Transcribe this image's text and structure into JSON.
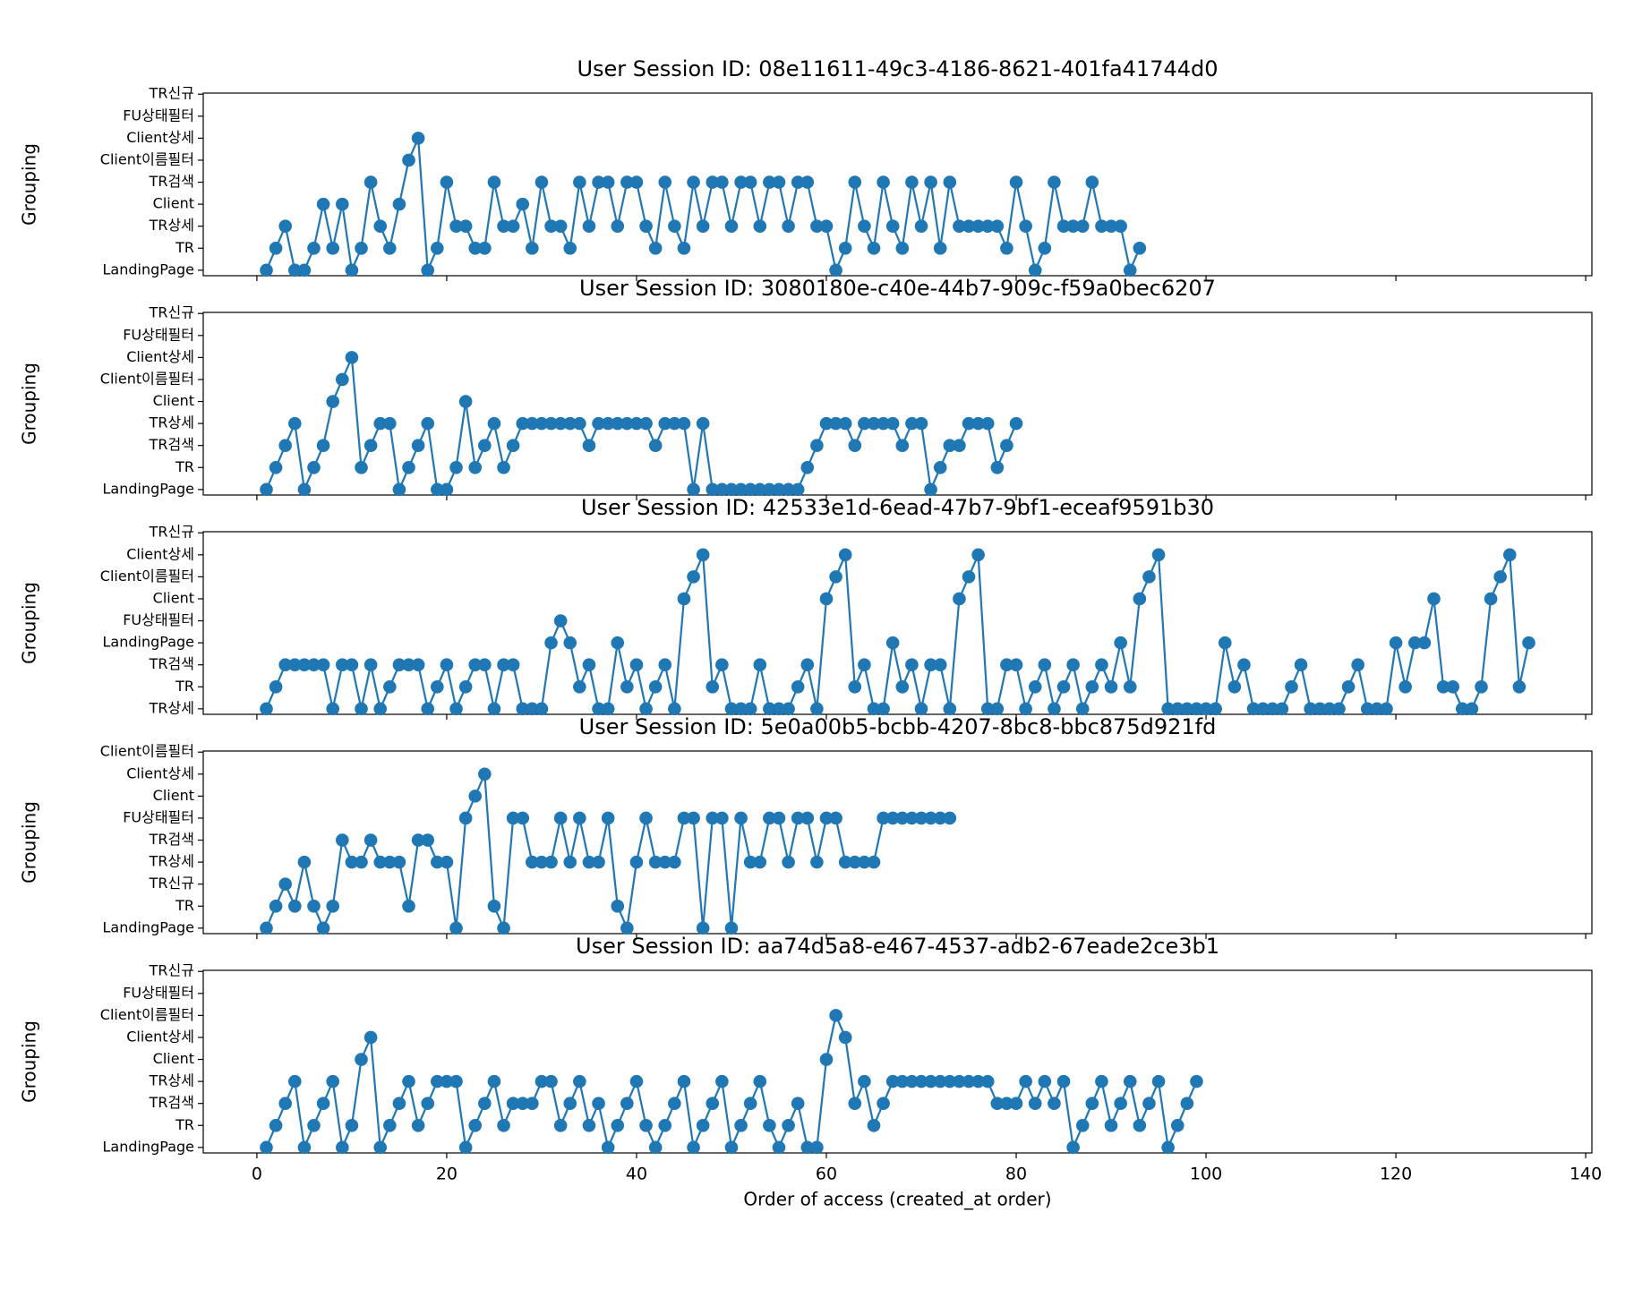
{
  "chart_data": [
    {
      "type": "line",
      "title": "User Session ID: 08e11611-49c3-4186-8621-401fa41744d0",
      "ylabel": "Grouping",
      "ylim": [
        -0.25,
        8.05
      ],
      "yticks": [
        {
          "value": 0,
          "label": "LandingPage"
        },
        {
          "value": 1,
          "label": "TR"
        },
        {
          "value": 2,
          "label": "TR상세"
        },
        {
          "value": 3,
          "label": "Client"
        },
        {
          "value": 4,
          "label": "TR검색"
        },
        {
          "value": 5,
          "label": "Client이름필터"
        },
        {
          "value": 6,
          "label": "Client상세"
        },
        {
          "value": 7,
          "label": "FU상태필터"
        },
        {
          "value": 8,
          "label": "TR신규"
        }
      ],
      "x": [
        1,
        2,
        3,
        4,
        5,
        6,
        7,
        8,
        9,
        10,
        11,
        12,
        13,
        14,
        15,
        16,
        17,
        18,
        19,
        20,
        21,
        22,
        23,
        24,
        25,
        26,
        27,
        28,
        29,
        30,
        31,
        32,
        33,
        34,
        35,
        36,
        37,
        38,
        39,
        40,
        41,
        42,
        43,
        44,
        45,
        46,
        47,
        48,
        49,
        50,
        51,
        52,
        53,
        54,
        55,
        56,
        57,
        58,
        59,
        60,
        61,
        62,
        63,
        64,
        65,
        66,
        67,
        68,
        69,
        70,
        71,
        72,
        73,
        74,
        75,
        76,
        77,
        78,
        79,
        80,
        81,
        82,
        83,
        84,
        85,
        86,
        87,
        88,
        89,
        90,
        91,
        92,
        93
      ],
      "series": [
        {
          "color": "#1f77b4",
          "values": [
            0,
            1,
            2,
            0,
            0,
            1,
            3,
            1,
            3,
            0,
            1,
            4,
            2,
            1,
            3,
            5,
            6,
            0,
            1,
            4,
            2,
            2,
            1,
            1,
            4,
            2,
            2,
            3,
            1,
            4,
            2,
            2,
            1,
            4,
            2,
            4,
            4,
            2,
            4,
            4,
            2,
            1,
            4,
            2,
            1,
            4,
            2,
            4,
            4,
            2,
            4,
            4,
            2,
            4,
            4,
            2,
            4,
            4,
            2,
            2,
            0,
            1,
            4,
            2,
            1,
            4,
            2,
            1,
            4,
            2,
            4,
            1,
            4,
            2,
            2,
            2,
            2,
            2,
            1,
            4,
            2,
            0,
            1,
            4,
            2,
            2,
            2,
            4,
            2,
            2,
            2,
            0,
            1
          ]
        }
      ]
    },
    {
      "type": "line",
      "title": "User Session ID: 3080180e-c40e-44b7-909c-f59a0bec6207",
      "ylabel": "Grouping",
      "ylim": [
        -0.25,
        8.05
      ],
      "yticks": [
        {
          "value": 0,
          "label": "LandingPage"
        },
        {
          "value": 1,
          "label": "TR"
        },
        {
          "value": 2,
          "label": "TR검색"
        },
        {
          "value": 3,
          "label": "TR상세"
        },
        {
          "value": 4,
          "label": "Client"
        },
        {
          "value": 5,
          "label": "Client이름필터"
        },
        {
          "value": 6,
          "label": "Client상세"
        },
        {
          "value": 7,
          "label": "FU상태필터"
        },
        {
          "value": 8,
          "label": "TR신규"
        }
      ],
      "x": [
        1,
        2,
        3,
        4,
        5,
        6,
        7,
        8,
        9,
        10,
        11,
        12,
        13,
        14,
        15,
        16,
        17,
        18,
        19,
        20,
        21,
        22,
        23,
        24,
        25,
        26,
        27,
        28,
        29,
        30,
        31,
        32,
        33,
        34,
        35,
        36,
        37,
        38,
        39,
        40,
        41,
        42,
        43,
        44,
        45,
        46,
        47,
        48,
        49,
        50,
        51,
        52,
        53,
        54,
        55,
        56,
        57,
        58,
        59,
        60,
        61,
        62,
        63,
        64,
        65,
        66,
        67,
        68,
        69,
        70,
        71,
        72,
        73,
        74,
        75,
        76,
        77,
        78,
        79,
        80
      ],
      "series": [
        {
          "color": "#1f77b4",
          "values": [
            0,
            1,
            2,
            3,
            0,
            1,
            2,
            4,
            5,
            6,
            1,
            2,
            3,
            3,
            0,
            1,
            2,
            3,
            0,
            0,
            1,
            4,
            1,
            2,
            3,
            1,
            2,
            3,
            3,
            3,
            3,
            3,
            3,
            3,
            2,
            3,
            3,
            3,
            3,
            3,
            3,
            2,
            3,
            3,
            3,
            0,
            3,
            0,
            0,
            0,
            0,
            0,
            0,
            0,
            0,
            0,
            0,
            1,
            2,
            3,
            3,
            3,
            2,
            3,
            3,
            3,
            3,
            2,
            3,
            3,
            0,
            1,
            2,
            2,
            3,
            3,
            3,
            1,
            2,
            3
          ]
        }
      ]
    },
    {
      "type": "line",
      "title": "User Session ID: 42533e1d-6ead-47b7-9bf1-eceaf9591b30",
      "ylabel": "Grouping",
      "ylim": [
        -0.25,
        8.05
      ],
      "yticks": [
        {
          "value": 0,
          "label": "TR상세"
        },
        {
          "value": 1,
          "label": "TR"
        },
        {
          "value": 2,
          "label": "TR검색"
        },
        {
          "value": 3,
          "label": "LandingPage"
        },
        {
          "value": 4,
          "label": "FU상태필터"
        },
        {
          "value": 5,
          "label": "Client"
        },
        {
          "value": 6,
          "label": "Client이름필터"
        },
        {
          "value": 7,
          "label": "Client상세"
        },
        {
          "value": 8,
          "label": "TR신규"
        }
      ],
      "x": [
        1,
        2,
        3,
        4,
        5,
        6,
        7,
        8,
        9,
        10,
        11,
        12,
        13,
        14,
        15,
        16,
        17,
        18,
        19,
        20,
        21,
        22,
        23,
        24,
        25,
        26,
        27,
        28,
        29,
        30,
        31,
        32,
        33,
        34,
        35,
        36,
        37,
        38,
        39,
        40,
        41,
        42,
        43,
        44,
        45,
        46,
        47,
        48,
        49,
        50,
        51,
        52,
        53,
        54,
        55,
        56,
        57,
        58,
        59,
        60,
        61,
        62,
        63,
        64,
        65,
        66,
        67,
        68,
        69,
        70,
        71,
        72,
        73,
        74,
        75,
        76,
        77,
        78,
        79,
        80,
        81,
        82,
        83,
        84,
        85,
        86,
        87,
        88,
        89,
        90,
        91,
        92,
        93,
        94,
        95,
        96,
        97,
        98,
        99,
        100,
        101,
        102,
        103,
        104,
        105,
        106,
        107,
        108,
        109,
        110,
        111,
        112,
        113,
        114,
        115,
        116,
        117,
        118,
        119,
        120,
        121,
        122,
        123,
        124,
        125,
        126,
        127,
        128,
        129,
        130,
        131,
        132,
        133,
        134
      ],
      "series": [
        {
          "color": "#1f77b4",
          "values": [
            0,
            1,
            2,
            2,
            2,
            2,
            2,
            0,
            2,
            2,
            0,
            2,
            0,
            1,
            2,
            2,
            2,
            0,
            1,
            2,
            0,
            1,
            2,
            2,
            0,
            2,
            2,
            0,
            0,
            0,
            3,
            4,
            3,
            1,
            2,
            0,
            0,
            3,
            1,
            2,
            0,
            1,
            2,
            0,
            5,
            6,
            7,
            1,
            2,
            0,
            0,
            0,
            2,
            0,
            0,
            0,
            1,
            2,
            0,
            5,
            6,
            7,
            1,
            2,
            0,
            0,
            3,
            1,
            2,
            0,
            2,
            2,
            0,
            5,
            6,
            7,
            0,
            0,
            2,
            2,
            0,
            1,
            2,
            0,
            1,
            2,
            0,
            1,
            2,
            1,
            3,
            1,
            5,
            6,
            7,
            0,
            0,
            0,
            0,
            0,
            0,
            3,
            1,
            2,
            0,
            0,
            0,
            0,
            1,
            2,
            0,
            0,
            0,
            0,
            1,
            2,
            0,
            0,
            0,
            3,
            1,
            3,
            3,
            5,
            1,
            1,
            0,
            0,
            1,
            5,
            6,
            7,
            1,
            3
          ]
        }
      ]
    },
    {
      "type": "line",
      "title": "User Session ID: 5e0a00b5-bcbb-4207-8bc8-bbc875d921fd",
      "ylabel": "Grouping",
      "ylim": [
        -0.25,
        8.05
      ],
      "yticks": [
        {
          "value": 0,
          "label": "LandingPage"
        },
        {
          "value": 1,
          "label": "TR"
        },
        {
          "value": 2,
          "label": "TR신규"
        },
        {
          "value": 3,
          "label": "TR상세"
        },
        {
          "value": 4,
          "label": "TR검색"
        },
        {
          "value": 5,
          "label": "FU상태필터"
        },
        {
          "value": 6,
          "label": "Client"
        },
        {
          "value": 7,
          "label": "Client상세"
        },
        {
          "value": 8,
          "label": "Client이름필터"
        }
      ],
      "x": [
        1,
        2,
        3,
        4,
        5,
        6,
        7,
        8,
        9,
        10,
        11,
        12,
        13,
        14,
        15,
        16,
        17,
        18,
        19,
        20,
        21,
        22,
        23,
        24,
        25,
        26,
        27,
        28,
        29,
        30,
        31,
        32,
        33,
        34,
        35,
        36,
        37,
        38,
        39,
        40,
        41,
        42,
        43,
        44,
        45,
        46,
        47,
        48,
        49,
        50,
        51,
        52,
        53,
        54,
        55,
        56,
        57,
        58,
        59,
        60,
        61,
        62,
        63,
        64,
        65,
        66,
        67,
        68,
        69,
        70,
        71,
        72,
        73
      ],
      "series": [
        {
          "color": "#1f77b4",
          "values": [
            0,
            1,
            2,
            1,
            3,
            1,
            0,
            1,
            4,
            3,
            3,
            4,
            3,
            3,
            3,
            1,
            4,
            4,
            3,
            3,
            0,
            5,
            6,
            7,
            1,
            0,
            5,
            5,
            3,
            3,
            3,
            5,
            3,
            5,
            3,
            3,
            5,
            1,
            0,
            3,
            5,
            3,
            3,
            3,
            5,
            5,
            0,
            5,
            5,
            0,
            5,
            3,
            3,
            5,
            5,
            3,
            5,
            5,
            3,
            5,
            5,
            3,
            3,
            3,
            3,
            5,
            5,
            5,
            5,
            5,
            5,
            5,
            5
          ]
        }
      ]
    },
    {
      "type": "line",
      "title": "User Session ID: aa74d5a8-e467-4537-adb2-67eade2ce3b1",
      "ylabel": "Grouping",
      "xlabel": "Order of access (created_at order)",
      "ylim": [
        -0.25,
        8.05
      ],
      "yticks": [
        {
          "value": 0,
          "label": "LandingPage"
        },
        {
          "value": 1,
          "label": "TR"
        },
        {
          "value": 2,
          "label": "TR검색"
        },
        {
          "value": 3,
          "label": "TR상세"
        },
        {
          "value": 4,
          "label": "Client"
        },
        {
          "value": 5,
          "label": "Client상세"
        },
        {
          "value": 6,
          "label": "Client이름필터"
        },
        {
          "value": 7,
          "label": "FU상태필터"
        },
        {
          "value": 8,
          "label": "TR신규"
        }
      ],
      "xlim": [
        -5.65,
        140.65
      ],
      "xticks": [
        0,
        20,
        40,
        60,
        80,
        100,
        120,
        140
      ],
      "x": [
        1,
        2,
        3,
        4,
        5,
        6,
        7,
        8,
        9,
        10,
        11,
        12,
        13,
        14,
        15,
        16,
        17,
        18,
        19,
        20,
        21,
        22,
        23,
        24,
        25,
        26,
        27,
        28,
        29,
        30,
        31,
        32,
        33,
        34,
        35,
        36,
        37,
        38,
        39,
        40,
        41,
        42,
        43,
        44,
        45,
        46,
        47,
        48,
        49,
        50,
        51,
        52,
        53,
        54,
        55,
        56,
        57,
        58,
        59,
        60,
        61,
        62,
        63,
        64,
        65,
        66,
        67,
        68,
        69,
        70,
        71,
        72,
        73,
        74,
        75,
        76,
        77,
        78,
        79,
        80,
        81,
        82,
        83,
        84,
        85,
        86,
        87,
        88,
        89,
        90,
        91,
        92,
        93,
        94,
        95,
        96,
        97,
        98,
        99
      ],
      "series": [
        {
          "color": "#1f77b4",
          "values": [
            0,
            1,
            2,
            3,
            0,
            1,
            2,
            3,
            0,
            1,
            4,
            5,
            0,
            1,
            2,
            3,
            1,
            2,
            3,
            3,
            3,
            0,
            1,
            2,
            3,
            1,
            2,
            2,
            2,
            3,
            3,
            1,
            2,
            3,
            1,
            2,
            0,
            1,
            2,
            3,
            1,
            0,
            1,
            2,
            3,
            0,
            1,
            2,
            3,
            0,
            1,
            2,
            3,
            1,
            0,
            1,
            2,
            0,
            0,
            4,
            6,
            5,
            2,
            3,
            1,
            2,
            3,
            3,
            3,
            3,
            3,
            3,
            3,
            3,
            3,
            3,
            3,
            2,
            2,
            2,
            3,
            2,
            3,
            2,
            3,
            0,
            1,
            2,
            3,
            1,
            2,
            3,
            1,
            2,
            3,
            0,
            1,
            2,
            3
          ]
        }
      ]
    }
  ]
}
